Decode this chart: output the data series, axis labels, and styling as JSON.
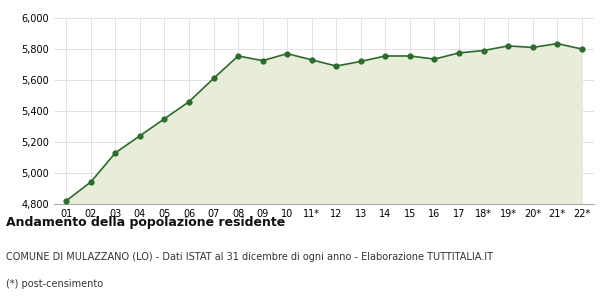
{
  "x_labels": [
    "01",
    "02",
    "03",
    "04",
    "05",
    "06",
    "07",
    "08",
    "09",
    "10",
    "11*",
    "12",
    "13",
    "14",
    "15",
    "16",
    "17",
    "18*",
    "19*",
    "20*",
    "21*",
    "22*"
  ],
  "y_values": [
    4821,
    4942,
    5130,
    5240,
    5350,
    5460,
    5610,
    5755,
    5725,
    5770,
    5730,
    5690,
    5720,
    5755,
    5755,
    5735,
    5775,
    5790,
    5820,
    5810,
    5835,
    5800
  ],
  "line_color": "#2d6a2d",
  "fill_color": "#e8edda",
  "marker_color": "#2d6a2d",
  "background_color": "#ffffff",
  "plot_bg_color": "#ffffff",
  "grid_color": "#cccccc",
  "ylim": [
    4800,
    6000
  ],
  "yticks": [
    4800,
    5000,
    5200,
    5400,
    5600,
    5800,
    6000
  ],
  "title": "Andamento della popolazione residente",
  "subtitle": "COMUNE DI MULAZZANO (LO) - Dati ISTAT al 31 dicembre di ogni anno - Elaborazione TUTTITALIA.IT",
  "footnote": "(*) post-censimento",
  "title_fontsize": 9,
  "subtitle_fontsize": 7,
  "footnote_fontsize": 7
}
